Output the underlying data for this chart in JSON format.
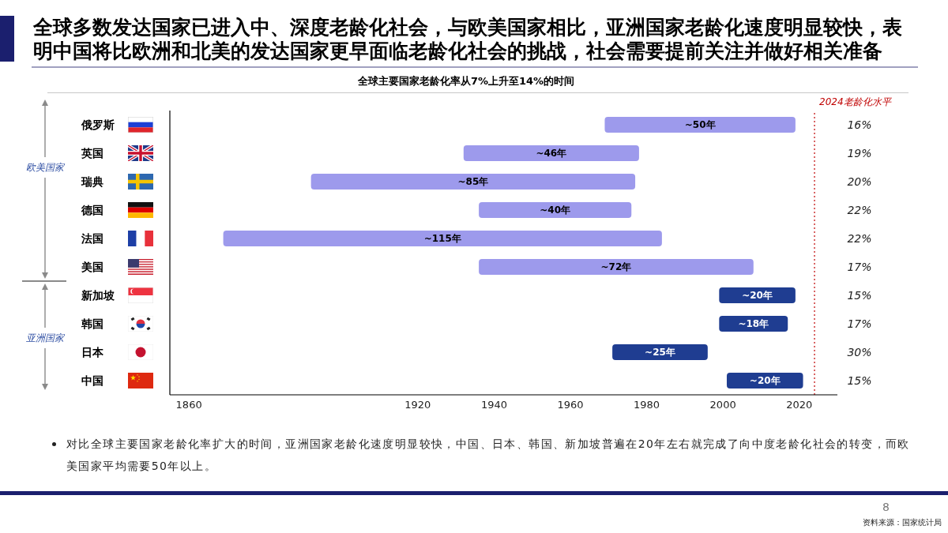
{
  "chart_data": {
    "type": "bar",
    "orientation": "horizontal",
    "title": "全球多数发达国家已进入中、深度老龄化社会，与欧美国家相比，亚洲国家老龄化速度明显较快，表明中国将比欧洲和北美的发达国家更早面临老龄化社会的挑战，社会需要提前关注并做好相关准备",
    "subtitle": "全球主要国家老龄化率从7%上升至14%的时间",
    "categories": [
      "俄罗斯",
      "英国",
      "瑞典",
      "德国",
      "法国",
      "美国",
      "新加坡",
      "韩国",
      "日本",
      "中国"
    ],
    "values": [
      50,
      46,
      85,
      40,
      115,
      72,
      20,
      18,
      25,
      20
    ],
    "base": [
      1969,
      1932,
      1892,
      1936,
      1869,
      1936,
      1999,
      1999,
      1971,
      2001
    ],
    "colors": [
      "#9d9aec",
      "#9d9aec",
      "#9d9aec",
      "#9d9aec",
      "#9d9aec",
      "#9d9aec",
      "#1f3d91",
      "#1f3d91",
      "#1f3d91",
      "#1f3d91"
    ],
    "value_labels": [
      "~50年",
      "~46年",
      "~85年",
      "~40年",
      "~115年",
      "~72年",
      "~20年",
      "~18年",
      "~25年",
      "~20年"
    ],
    "xlim": [
      1855,
      2030
    ],
    "xticks": [
      1860,
      1920,
      1940,
      1960,
      1980,
      2000,
      2020
    ],
    "ref_lines": [
      {
        "axis": "x",
        "value": 2024,
        "label": "2024老龄化水平",
        "color": "#c00000",
        "line_style": "dotted"
      }
    ],
    "annotations": [
      "欧美国家",
      "亚洲国家",
      "16%",
      "19%",
      "20%",
      "22%",
      "22%",
      "17%",
      "15%",
      "17%",
      "30%",
      "15%",
      "对比全球主要国家老龄化率扩大的时间，亚洲国家老龄化速度明显较快，中国、日本、韩国、新加坡普遍在20年左右就完成了向中度老龄化社会的转变，而欧美国家平均需要50年以上。",
      "资料来源：国家统计局",
      "8"
    ]
  }
}
